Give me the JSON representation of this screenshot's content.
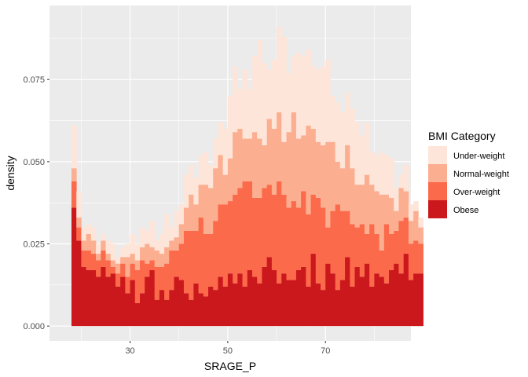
{
  "chart_data": {
    "type": "bar",
    "subtype": "stacked-histogram",
    "xlabel": "SRAGE_P",
    "ylabel": "density",
    "xlim": [
      13.5,
      87.5
    ],
    "ylim": [
      -0.0045,
      0.0975
    ],
    "x_ticks": [
      30,
      50,
      70
    ],
    "x_tick_labels": [
      "30",
      "50",
      "70"
    ],
    "y_ticks": [
      0.0,
      0.025,
      0.05,
      0.075
    ],
    "y_tick_labels": [
      "0.000",
      "0.025",
      "0.050",
      "0.075"
    ],
    "grid": true,
    "bin_start": 18,
    "bin_width": 1,
    "legend": {
      "title": "BMI Category",
      "position": "right"
    },
    "series": [
      {
        "name": "Obese",
        "color": "#cb181d",
        "values": [
          0.036,
          0.026,
          0.018,
          0.017,
          0.017,
          0.015,
          0.018,
          0.015,
          0.016,
          0.012,
          0.015,
          0.01,
          0.014,
          0.007,
          0.01,
          0.015,
          0.017,
          0.008,
          0.011,
          0.008,
          0.011,
          0.015,
          0.014,
          0.01,
          0.008,
          0.013,
          0.01,
          0.009,
          0.012,
          0.011,
          0.015,
          0.012,
          0.016,
          0.013,
          0.016,
          0.012,
          0.017,
          0.015,
          0.013,
          0.018,
          0.021,
          0.017,
          0.013,
          0.016,
          0.014,
          0.014,
          0.017,
          0.018,
          0.012,
          0.022,
          0.013,
          0.011,
          0.019,
          0.016,
          0.011,
          0.014,
          0.021,
          0.012,
          0.018,
          0.015,
          0.019,
          0.012,
          0.016,
          0.015,
          0.013,
          0.017,
          0.019,
          0.016,
          0.022,
          0.014,
          0.016,
          0.016
        ]
      },
      {
        "name": "Over-weight",
        "color": "#fb6a4a",
        "values": [
          0.008,
          0.004,
          0.005,
          0.006,
          0.005,
          0.005,
          0.005,
          0.005,
          0.002,
          0.004,
          0.004,
          0.005,
          0.005,
          0.01,
          0.01,
          0.004,
          0.003,
          0.01,
          0.007,
          0.011,
          0.012,
          0.008,
          0.011,
          0.019,
          0.021,
          0.016,
          0.023,
          0.019,
          0.016,
          0.021,
          0.022,
          0.025,
          0.022,
          0.027,
          0.026,
          0.032,
          0.027,
          0.024,
          0.026,
          0.024,
          0.022,
          0.023,
          0.031,
          0.024,
          0.022,
          0.024,
          0.019,
          0.023,
          0.022,
          0.018,
          0.026,
          0.025,
          0.011,
          0.019,
          0.026,
          0.021,
          0.014,
          0.019,
          0.012,
          0.016,
          0.009,
          0.019,
          0.012,
          0.008,
          0.018,
          0.011,
          0.01,
          0.016,
          0.011,
          0.011,
          0.01,
          0.009
        ]
      },
      {
        "name": "Normal-weight",
        "color": "#fcae91",
        "values": [
          0.004,
          0.003,
          0.003,
          0.005,
          0.004,
          0.002,
          0.003,
          0.002,
          0.002,
          0.003,
          0.002,
          0.006,
          0.003,
          0.003,
          0.004,
          0.006,
          0.004,
          0.005,
          0.004,
          0.005,
          0.003,
          0.004,
          0.006,
          0.007,
          0.011,
          0.008,
          0.01,
          0.015,
          0.014,
          0.016,
          0.015,
          0.009,
          0.013,
          0.019,
          0.018,
          0.013,
          0.013,
          0.02,
          0.018,
          0.013,
          0.02,
          0.02,
          0.021,
          0.016,
          0.023,
          0.027,
          0.021,
          0.017,
          0.027,
          0.02,
          0.017,
          0.019,
          0.026,
          0.021,
          0.013,
          0.013,
          0.02,
          0.017,
          0.013,
          0.012,
          0.018,
          0.012,
          0.013,
          0.017,
          0.009,
          0.011,
          0.006,
          0.01,
          0.008,
          0.007,
          0.009,
          0.005
        ]
      },
      {
        "name": "Under-weight",
        "color": "#fee5d9",
        "values": [
          0.013,
          0.008,
          0.004,
          0.003,
          0.004,
          0.003,
          0.002,
          0.004,
          0.005,
          0.002,
          0.003,
          0.004,
          0.006,
          0.005,
          0.006,
          0.004,
          0.008,
          0.003,
          0.006,
          0.01,
          0.004,
          0.008,
          0.006,
          0.01,
          0.009,
          0.008,
          0.009,
          0.01,
          0.007,
          0.009,
          0.01,
          0.014,
          0.019,
          0.02,
          0.012,
          0.021,
          0.015,
          0.023,
          0.03,
          0.025,
          0.015,
          0.021,
          0.026,
          0.032,
          0.018,
          0.017,
          0.026,
          0.024,
          0.023,
          0.019,
          0.022,
          0.024,
          0.025,
          0.014,
          0.018,
          0.017,
          0.016,
          0.018,
          0.019,
          0.015,
          0.016,
          0.01,
          0.011,
          0.013,
          0.012,
          0.012,
          0.007,
          0.004,
          0.008,
          0.005,
          0.003,
          0.003
        ]
      }
    ],
    "legend_order": [
      "Under-weight",
      "Normal-weight",
      "Over-weight",
      "Obese"
    ]
  }
}
